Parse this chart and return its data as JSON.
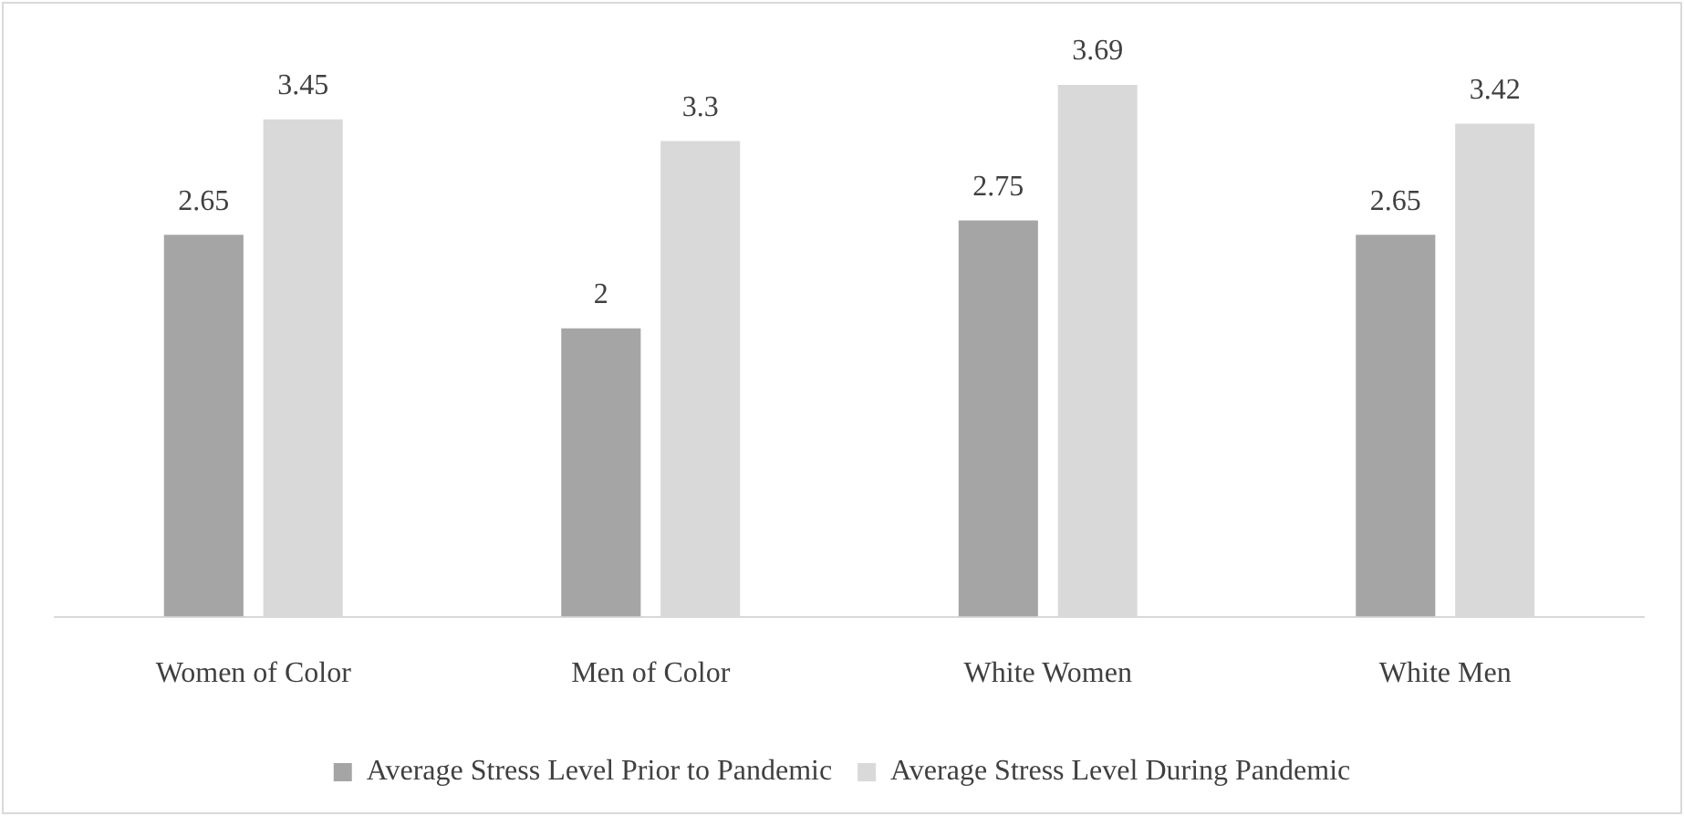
{
  "chart_data": {
    "type": "bar",
    "categories": [
      "Women of Color",
      "Men of Color",
      "White Women",
      "White Men"
    ],
    "series": [
      {
        "name": "Average Stress Level Prior to Pandemic",
        "color": "#a5a5a5",
        "values": [
          2.65,
          2,
          2.75,
          2.65
        ]
      },
      {
        "name": "Average Stress Level During Pandemic",
        "color": "#d9d9d9",
        "values": [
          3.45,
          3.3,
          3.69,
          3.42
        ]
      }
    ],
    "data_labels": true,
    "grid": false,
    "legend": "bottom"
  }
}
